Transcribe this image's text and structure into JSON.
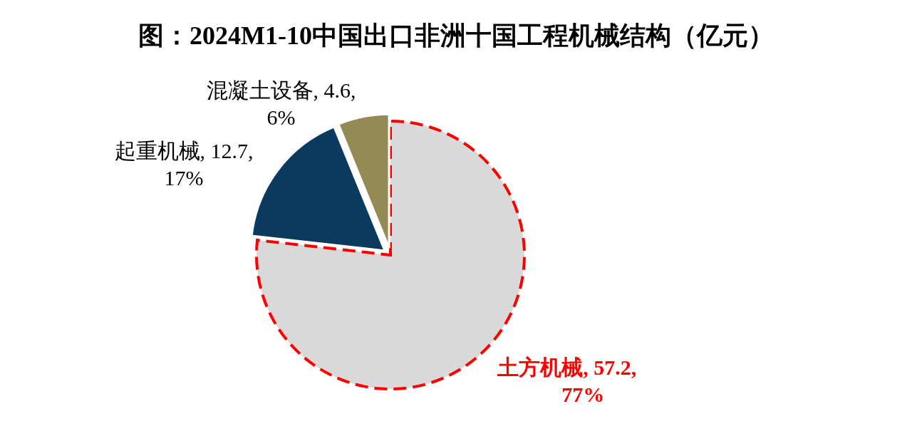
{
  "chart_data": {
    "type": "pie",
    "title": "图：2024M1-10中国出口非洲十国工程机械结构（亿元）",
    "categories": [
      "土方机械",
      "起重机械",
      "混凝土设备"
    ],
    "values": [
      57.2,
      12.7,
      4.6
    ],
    "value_labels": [
      "57.2,\n77%",
      "12.7,\n17%",
      "4.6,\n6%"
    ],
    "colors": [
      "#d9d9d9",
      "#0a3a5e",
      "#948a54"
    ]
  }
}
